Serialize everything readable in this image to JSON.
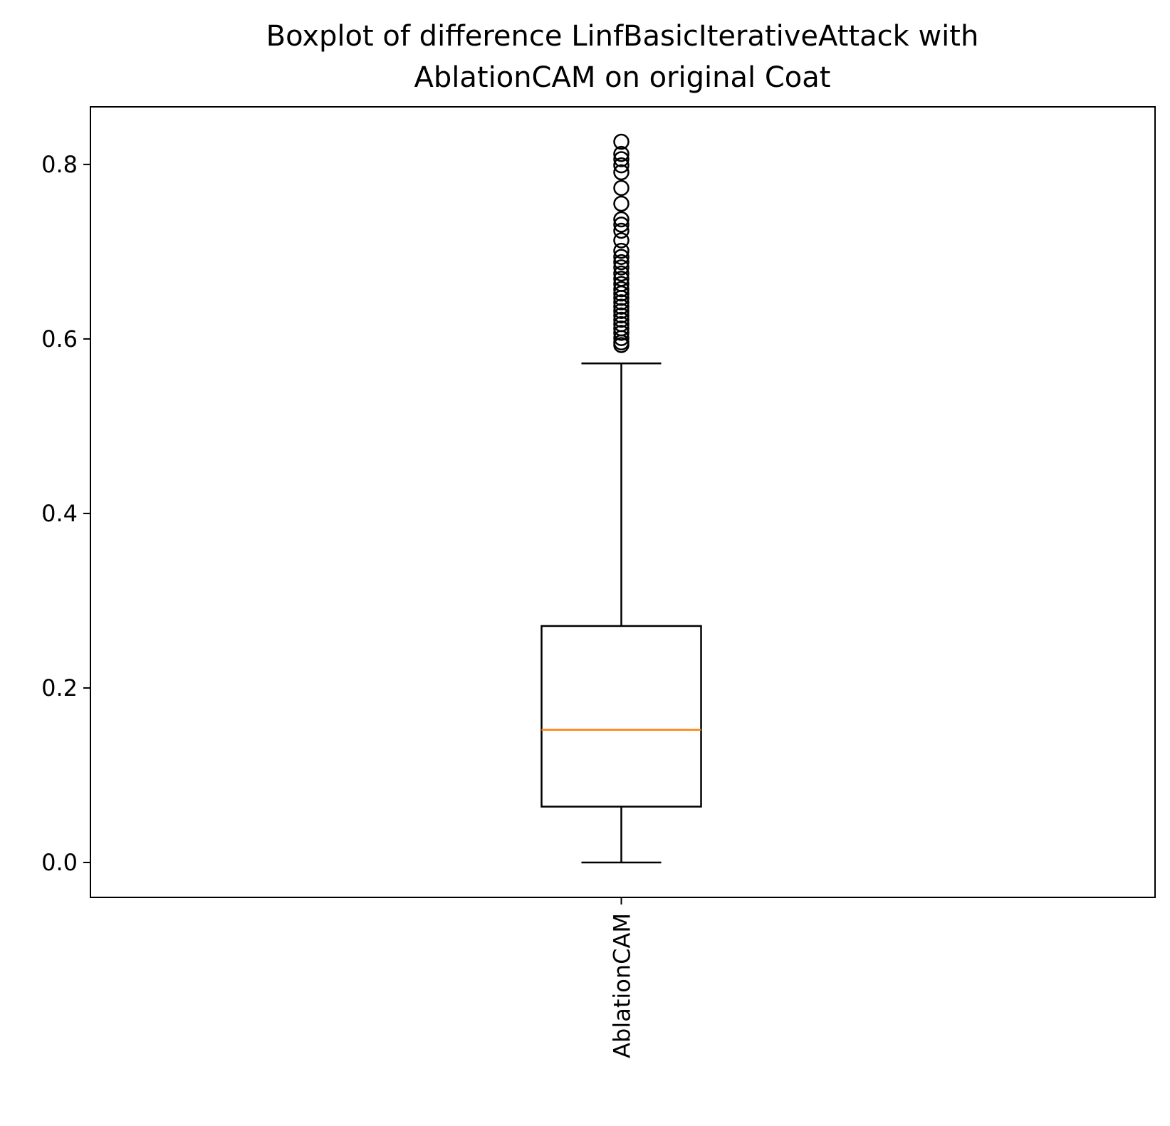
{
  "chart_data": {
    "type": "boxplot",
    "title": "Boxplot of difference LinfBasicIterativeAttack with\nAblationCAM on original Coat",
    "title_lines": [
      "Boxplot of difference LinfBasicIterativeAttack with",
      "AblationCAM on original Coat"
    ],
    "xlabel": "",
    "ylabel": "",
    "ylim": [
      -0.04,
      0.866
    ],
    "yticks": [
      0.0,
      0.2,
      0.4,
      0.6,
      0.8
    ],
    "ytick_labels": [
      "0.0",
      "0.2",
      "0.4",
      "0.6",
      "0.8"
    ],
    "grid": false,
    "categories": [
      "AblationCAM"
    ],
    "boxes": [
      {
        "category": "AblationCAM",
        "whisker_low": 0.0,
        "q1": 0.064,
        "median": 0.152,
        "q3": 0.271,
        "whisker_high": 0.572,
        "outliers": [
          0.593,
          0.596,
          0.601,
          0.607,
          0.612,
          0.617,
          0.622,
          0.627,
          0.632,
          0.637,
          0.642,
          0.647,
          0.652,
          0.657,
          0.663,
          0.669,
          0.675,
          0.682,
          0.688,
          0.694,
          0.701,
          0.713,
          0.724,
          0.731,
          0.737,
          0.755,
          0.773,
          0.791,
          0.799,
          0.806,
          0.812,
          0.826
        ]
      }
    ],
    "colors": {
      "box": "#000000",
      "median": "#ff7f0e",
      "whisker": "#000000",
      "outlier": "#000000"
    }
  }
}
